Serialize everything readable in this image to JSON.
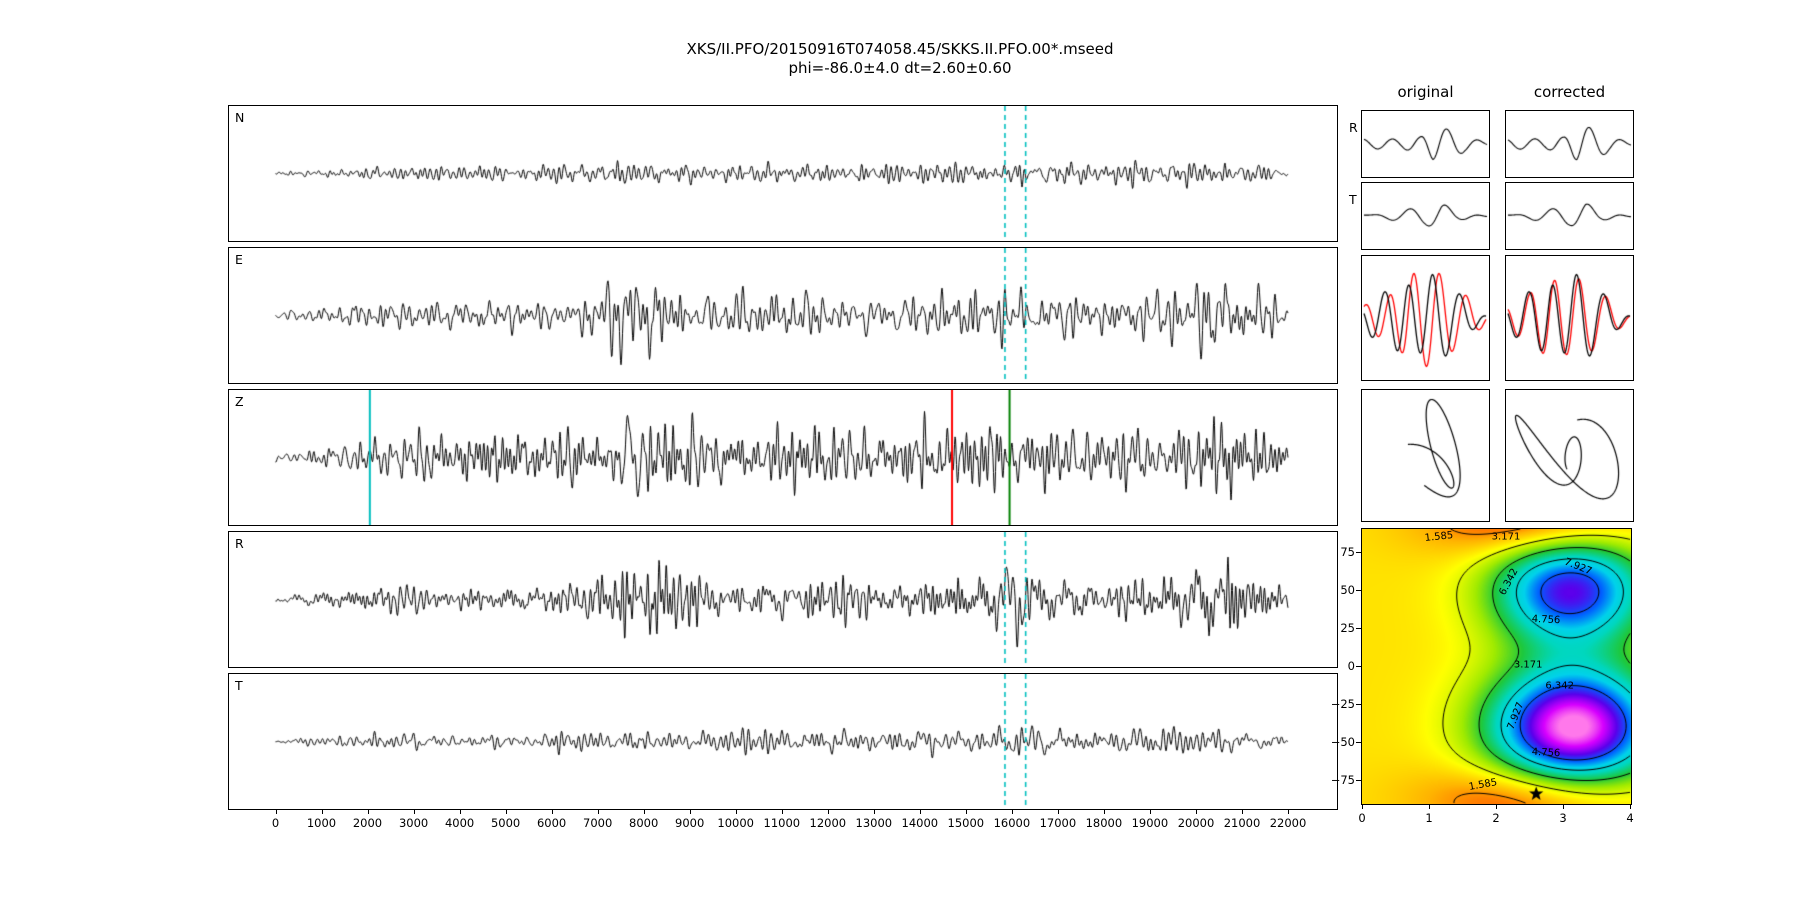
{
  "figure": {
    "title_line1": "XKS/II.PFO/20150916T074058.45/SKKS.II.PFO.00*.mseed",
    "title_line2": "phi=-86.0±4.0 dt=2.60±0.60"
  },
  "chart_data": [
    {
      "type": "line",
      "name": "waveforms",
      "x_unit": "samples",
      "xlim": [
        0,
        22000
      ],
      "x_ticks": [
        0,
        1000,
        2000,
        3000,
        4000,
        5000,
        6000,
        7000,
        8000,
        9000,
        10000,
        11000,
        12000,
        13000,
        14000,
        15000,
        16000,
        17000,
        18000,
        19000,
        20000,
        21000,
        22000
      ],
      "window_dashed_cyan": [
        15850,
        16300
      ],
      "picks": {
        "cyan": 2050,
        "red": 14700,
        "green": 15950
      },
      "colors": {
        "trace": "#000000",
        "window": "#00bfbf",
        "pick_cyan": "#00bfbf",
        "pick_red": "#ff0000",
        "pick_green": "#008000"
      },
      "channels": [
        {
          "label": "N",
          "seed": 11,
          "amp": 22,
          "envelope": [
            [
              0,
              0.05
            ],
            [
              1200,
              0.22
            ],
            [
              2500,
              0.3
            ],
            [
              4000,
              0.22
            ],
            [
              6000,
              0.28
            ],
            [
              7600,
              0.38
            ],
            [
              9000,
              0.33
            ],
            [
              11000,
              0.38
            ],
            [
              13000,
              0.34
            ],
            [
              15000,
              0.38
            ],
            [
              16100,
              0.52
            ],
            [
              17000,
              0.38
            ],
            [
              18500,
              0.42
            ],
            [
              20000,
              0.48
            ],
            [
              21000,
              0.35
            ],
            [
              22000,
              0.12
            ]
          ]
        },
        {
          "label": "E",
          "seed": 22,
          "amp": 38,
          "envelope": [
            [
              0,
              0.06
            ],
            [
              800,
              0.18
            ],
            [
              2000,
              0.3
            ],
            [
              4000,
              0.33
            ],
            [
              6200,
              0.33
            ],
            [
              7600,
              0.85
            ],
            [
              8300,
              0.9
            ],
            [
              9200,
              0.45
            ],
            [
              10500,
              0.55
            ],
            [
              12000,
              0.45
            ],
            [
              14000,
              0.42
            ],
            [
              15600,
              0.6
            ],
            [
              16100,
              1.0
            ],
            [
              16600,
              0.5
            ],
            [
              18500,
              0.42
            ],
            [
              19800,
              0.8
            ],
            [
              20600,
              0.85
            ],
            [
              21400,
              0.55
            ],
            [
              22000,
              0.2
            ]
          ]
        },
        {
          "label": "Z",
          "seed": 33,
          "amp": 44,
          "envelope": [
            [
              0,
              0.06
            ],
            [
              1000,
              0.2
            ],
            [
              2200,
              0.45
            ],
            [
              3200,
              0.5
            ],
            [
              4500,
              0.45
            ],
            [
              6000,
              0.5
            ],
            [
              7200,
              0.75
            ],
            [
              7900,
              1.0
            ],
            [
              8600,
              0.9
            ],
            [
              9600,
              0.62
            ],
            [
              11000,
              0.58
            ],
            [
              12500,
              0.55
            ],
            [
              14000,
              0.55
            ],
            [
              15500,
              0.6
            ],
            [
              16200,
              0.65
            ],
            [
              17500,
              0.5
            ],
            [
              19000,
              0.55
            ],
            [
              20000,
              0.8
            ],
            [
              20800,
              0.75
            ],
            [
              21500,
              0.45
            ],
            [
              22000,
              0.18
            ]
          ]
        },
        {
          "label": "R",
          "seed": 44,
          "amp": 38,
          "envelope": [
            [
              0,
              0.06
            ],
            [
              1000,
              0.18
            ],
            [
              2500,
              0.28
            ],
            [
              4200,
              0.28
            ],
            [
              6000,
              0.32
            ],
            [
              7600,
              0.7
            ],
            [
              8400,
              0.75
            ],
            [
              9600,
              0.45
            ],
            [
              11000,
              0.45
            ],
            [
              13000,
              0.4
            ],
            [
              15400,
              0.5
            ],
            [
              16100,
              1.0
            ],
            [
              16700,
              0.55
            ],
            [
              18000,
              0.4
            ],
            [
              19500,
              0.55
            ],
            [
              20400,
              0.8
            ],
            [
              21100,
              0.65
            ],
            [
              22000,
              0.2
            ]
          ]
        },
        {
          "label": "T",
          "seed": 55,
          "amp": 24,
          "envelope": [
            [
              0,
              0.05
            ],
            [
              1000,
              0.15
            ],
            [
              2200,
              0.32
            ],
            [
              3200,
              0.36
            ],
            [
              5000,
              0.28
            ],
            [
              7000,
              0.36
            ],
            [
              8200,
              0.4
            ],
            [
              10000,
              0.36
            ],
            [
              12000,
              0.4
            ],
            [
              14000,
              0.36
            ],
            [
              15800,
              0.5
            ],
            [
              16400,
              0.55
            ],
            [
              18000,
              0.36
            ],
            [
              19500,
              0.45
            ],
            [
              20600,
              0.4
            ],
            [
              21500,
              0.3
            ],
            [
              22000,
              0.12
            ]
          ]
        }
      ]
    },
    {
      "type": "line",
      "name": "pulses",
      "columns": [
        "original",
        "corrected"
      ],
      "rows": [
        {
          "label": "R",
          "seed": 7,
          "rel_amp": 0.38,
          "envelope": [
            [
              0,
              0.18
            ],
            [
              0.3,
              0.22
            ],
            [
              0.45,
              0.45
            ],
            [
              0.56,
              1.0
            ],
            [
              0.68,
              0.6
            ],
            [
              0.82,
              0.28
            ],
            [
              1,
              0.16
            ]
          ]
        },
        {
          "label": "T",
          "seed": 9,
          "rel_amp": 0.26,
          "envelope": [
            [
              0,
              0.15
            ],
            [
              0.3,
              0.25
            ],
            [
              0.5,
              0.4
            ],
            [
              0.63,
              0.75
            ],
            [
              0.76,
              0.4
            ],
            [
              1,
              0.18
            ]
          ]
        }
      ]
    },
    {
      "type": "line",
      "name": "rt_overlay",
      "seed": 17,
      "series": [
        {
          "name": "data",
          "color": "#000000"
        },
        {
          "name": "model",
          "color": "#ff0000"
        }
      ],
      "shift_original": 0.05,
      "shift_corrected": 0.015,
      "envelope": [
        [
          0,
          0.22
        ],
        [
          0.18,
          0.5
        ],
        [
          0.35,
          1.0
        ],
        [
          0.55,
          0.9
        ],
        [
          0.75,
          0.5
        ],
        [
          1,
          0.25
        ]
      ]
    },
    {
      "type": "line",
      "name": "particle_motion",
      "panels": [
        {
          "name": "original",
          "seed": 23
        },
        {
          "name": "corrected",
          "seed": 29
        }
      ]
    },
    {
      "type": "heatmap",
      "name": "error_surface",
      "xlim": [
        0,
        4
      ],
      "ylim": [
        -90,
        90
      ],
      "x_ticks": [
        0,
        1,
        2,
        3,
        4
      ],
      "y_ticks": [
        75,
        50,
        25,
        0,
        -25,
        -50,
        -75
      ],
      "contour_levels": [
        1.585,
        3.171,
        4.756,
        6.342,
        7.927
      ],
      "contour_labels": [
        {
          "text": "1.585",
          "dt": 1.15,
          "phi": 85,
          "rot": -6
        },
        {
          "text": "3.171",
          "dt": 2.15,
          "phi": 85,
          "rot": 0
        },
        {
          "text": "7.927",
          "dt": 3.22,
          "phi": 65,
          "rot": 22
        },
        {
          "text": "6.342",
          "dt": 2.2,
          "phi": 55,
          "rot": -62
        },
        {
          "text": "4.756",
          "dt": 2.75,
          "phi": 30,
          "rot": 3
        },
        {
          "text": "3.171",
          "dt": 2.48,
          "phi": 1,
          "rot": 0
        },
        {
          "text": "6.342",
          "dt": 2.95,
          "phi": -13,
          "rot": 0
        },
        {
          "text": "7.927",
          "dt": 2.3,
          "phi": -33,
          "rot": -68
        },
        {
          "text": "4.756",
          "dt": 2.75,
          "phi": -57,
          "rot": 3
        },
        {
          "text": "1.585",
          "dt": 1.8,
          "phi": -78,
          "rot": -10
        }
      ],
      "best_fit": {
        "phi": -86.0,
        "dt": 2.6,
        "marker": "star"
      },
      "lobes": [
        {
          "dt": 3.1,
          "phi": 50
        },
        {
          "dt": 3.15,
          "phi": -40
        }
      ]
    }
  ]
}
